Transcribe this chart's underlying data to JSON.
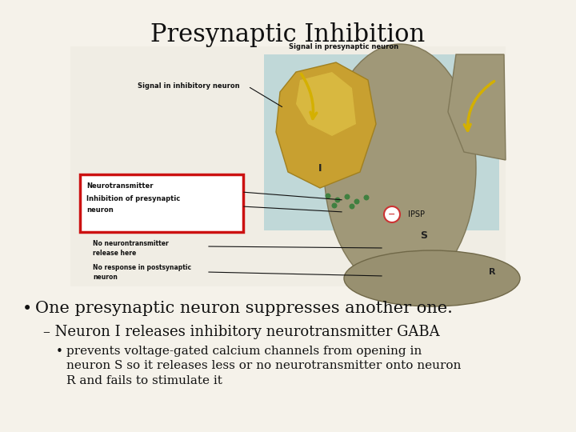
{
  "title": "Presynaptic Inhibition",
  "title_fontsize": 22,
  "background_color": "#f5f2ea",
  "text_color": "#111111",
  "bullet1": "One presynaptic neuron suppresses another one.",
  "bullet1_fontsize": 15,
  "bullet2": "– Neuron I releases inhibitory neurotransmitter GABA",
  "bullet2_fontsize": 13,
  "bullet3": "prevents voltage-gated calcium channels from opening in\nneuron S so it releases less or no neurotransmitter onto neuron\nR and fails to stimulate it",
  "bullet3_fontsize": 11,
  "diagram_label_fontsize": 5.5,
  "diagram_label_bold_fontsize": 6.0,
  "neuron_s_color": "#a09878",
  "neuron_s_edge": "#807858",
  "neuron_i_color": "#c8a030",
  "neuron_i_edge": "#a08020",
  "neuron_r_color": "#989070",
  "bg_blue_color": "#c0d8d8",
  "green_dot_color": "#408040",
  "red_box_color": "#cc1111",
  "ipsp_circle_color": "#cc3333",
  "arrow_yellow": "#d4b000",
  "arrow_black_curve": "#111111"
}
